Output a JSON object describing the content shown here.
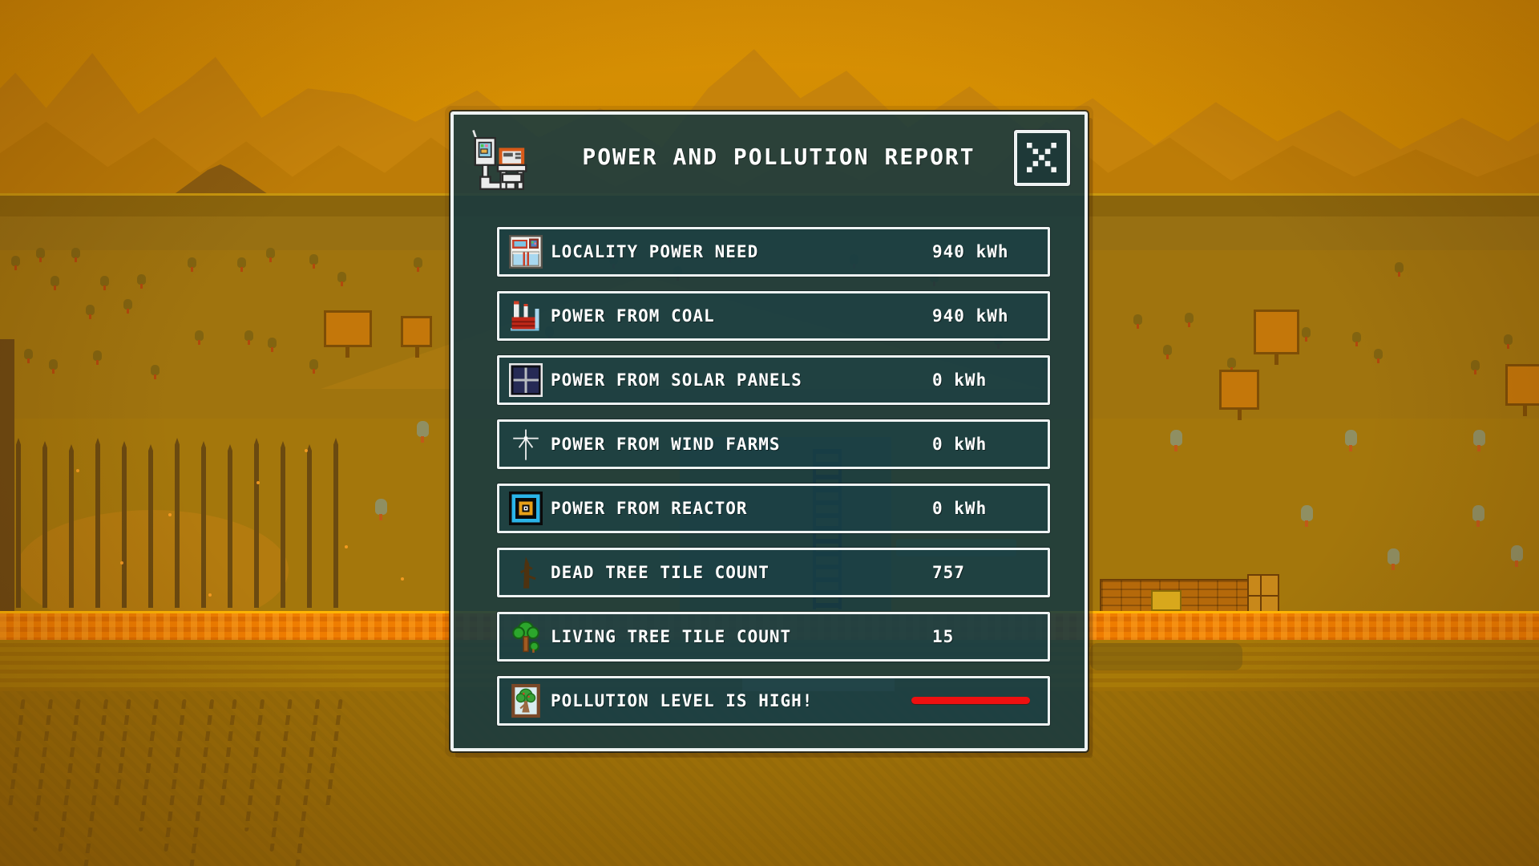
{
  "dialog": {
    "title": "POWER AND POLLUTION REPORT",
    "title_icon": "report-machine-icon",
    "close_label": "X",
    "rows": [
      {
        "icon": "locality-building-icon",
        "label": "LOCALITY POWER NEED",
        "value": "940 kWh"
      },
      {
        "icon": "coal-plant-icon",
        "label": "POWER FROM COAL",
        "value": "940 kWh"
      },
      {
        "icon": "solar-panel-icon",
        "label": "POWER FROM SOLAR PANELS",
        "value": "0 kWh"
      },
      {
        "icon": "wind-turbine-icon",
        "label": "POWER FROM WIND FARMS",
        "value": "0 kWh"
      },
      {
        "icon": "reactor-icon",
        "label": "POWER FROM REACTOR",
        "value": "0 kWh"
      },
      {
        "icon": "dead-tree-icon",
        "label": "DEAD TREE TILE COUNT",
        "value": "757"
      },
      {
        "icon": "living-tree-icon",
        "label": "LIVING TREE TILE COUNT",
        "value": "15"
      },
      {
        "icon": "pollution-tree-icon",
        "label": "POLLUTION LEVEL IS HIGH!",
        "value": "",
        "indicator": "red-bar"
      }
    ]
  },
  "colors": {
    "dialog_teal": "#113742",
    "panel_border": "#edf2f2",
    "alert_red": "#ee1010",
    "sky_orange": "#d28c00",
    "ground_band_orange": "#ef7d00"
  }
}
